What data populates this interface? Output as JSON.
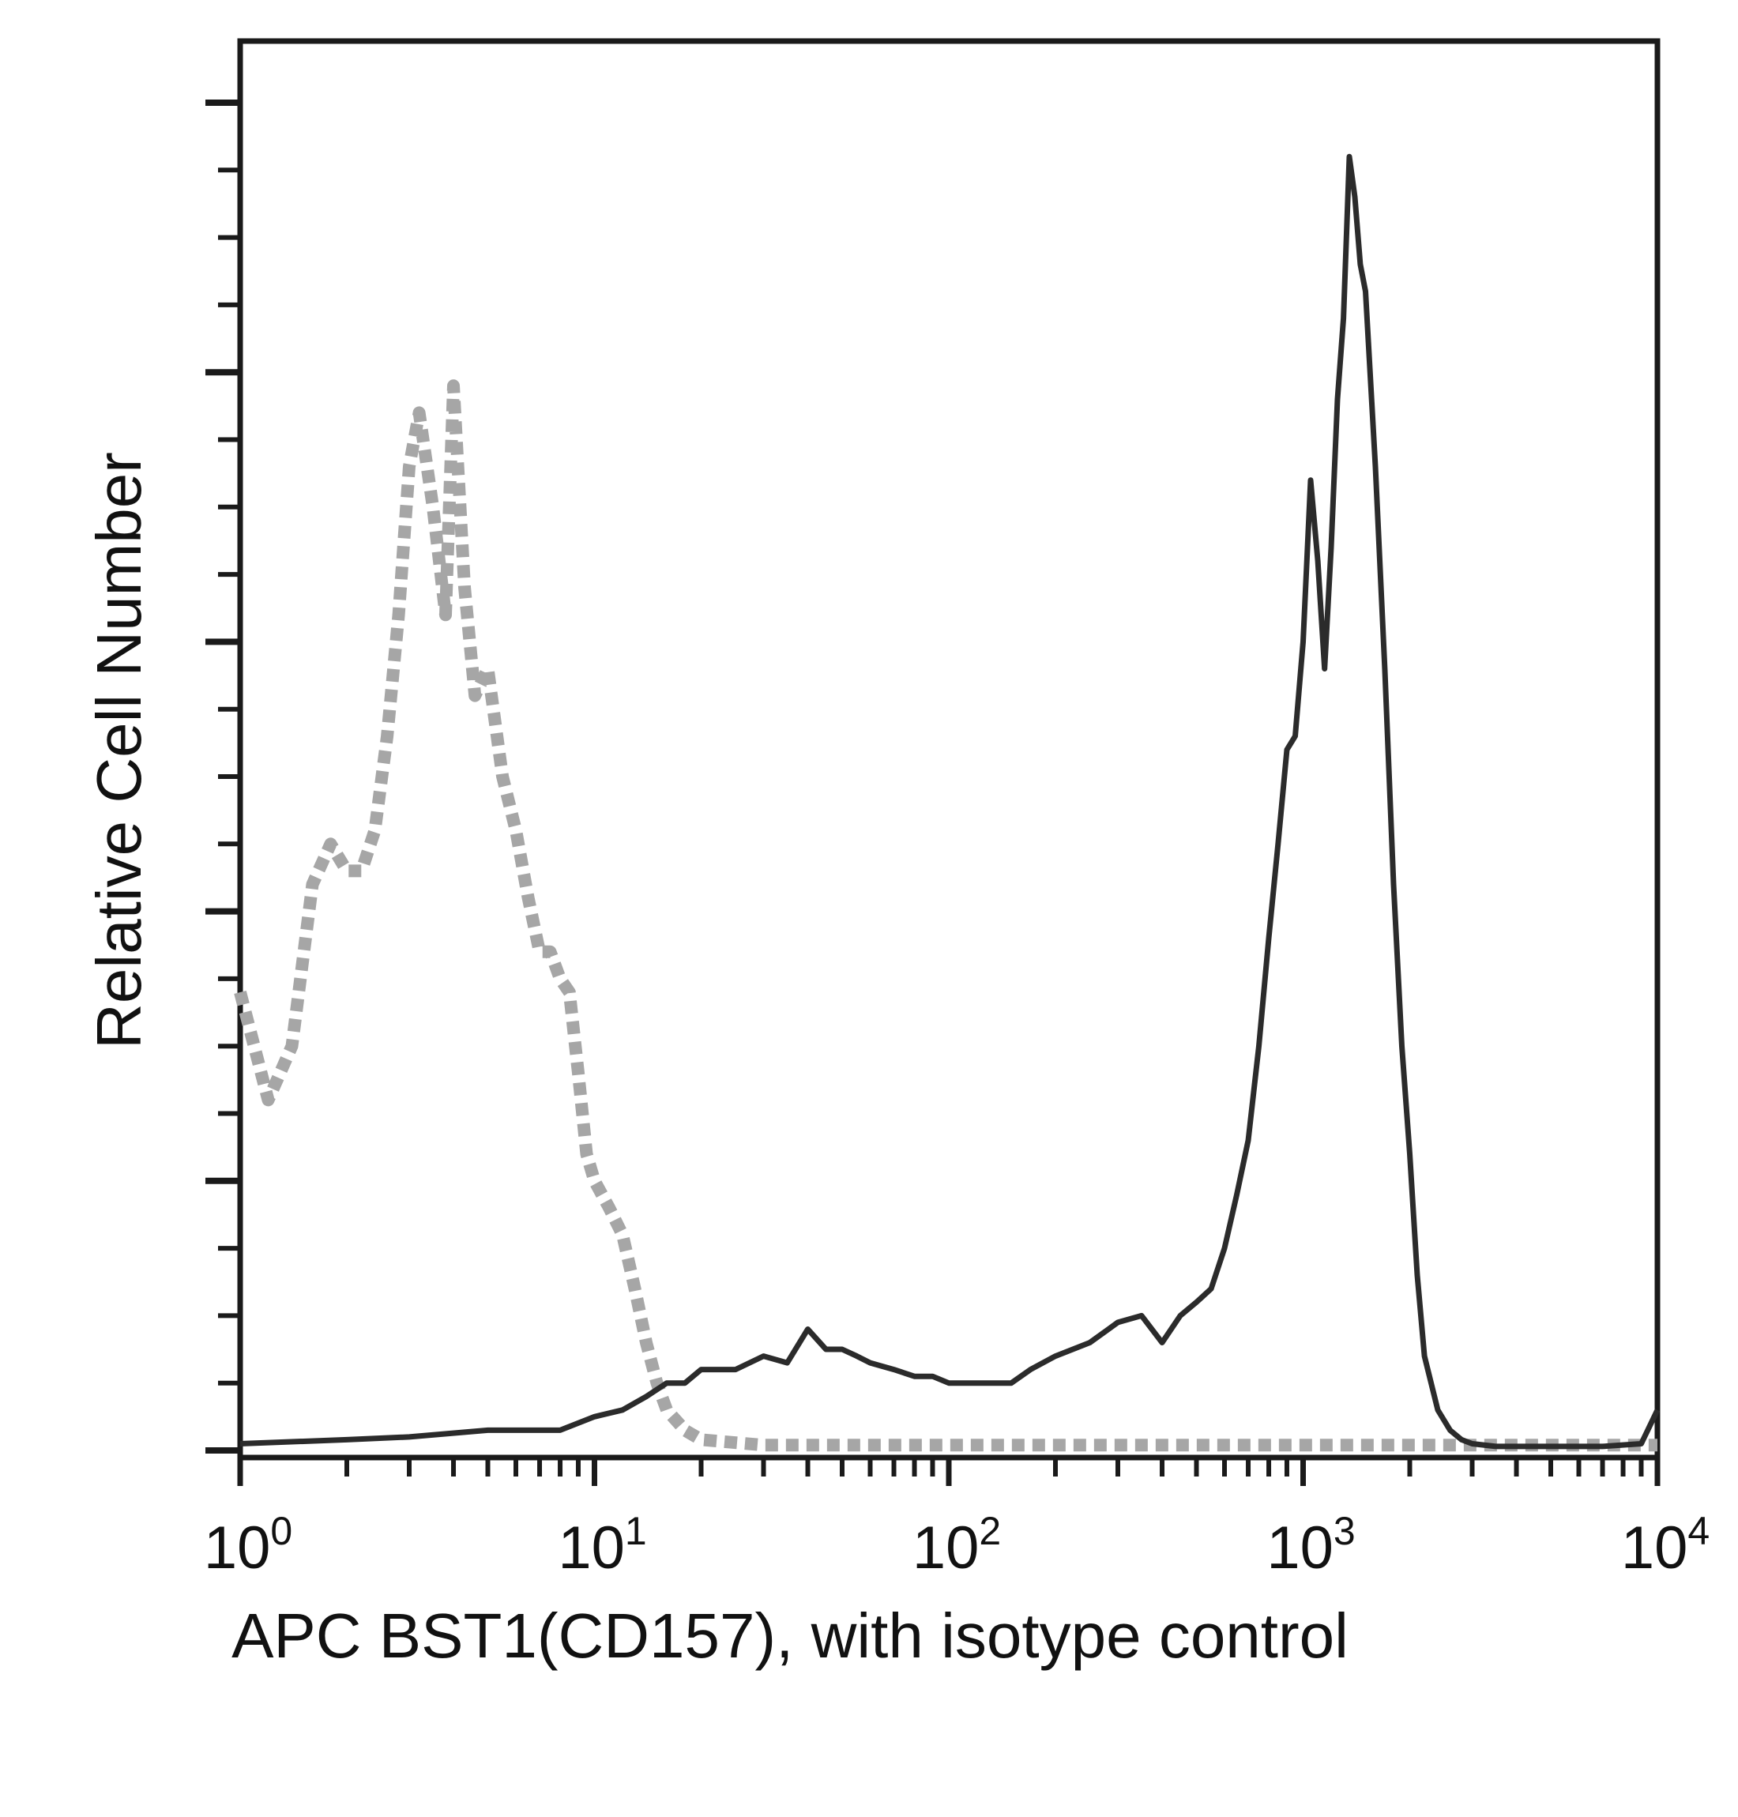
{
  "chart_data": {
    "type": "line",
    "title": "",
    "xlabel": "APC BST1(CD157), with isotype control",
    "ylabel": "Relative Cell Number",
    "x_scale": "log",
    "xlim": [
      1,
      10000
    ],
    "ylim": [
      0,
      100
    ],
    "x_ticks": [
      {
        "base": "10",
        "exp": "0"
      },
      {
        "base": "10",
        "exp": "1"
      },
      {
        "base": "10",
        "exp": "2"
      },
      {
        "base": "10",
        "exp": "3"
      },
      {
        "base": "10",
        "exp": "4"
      }
    ],
    "y_tick_labels": "none",
    "grid": false,
    "legend": "none",
    "series": [
      {
        "color": "#a6a6a6",
        "style": "dashed",
        "x": [
          1.0,
          1.2,
          1.4,
          1.6,
          1.8,
          2.0,
          2.2,
          2.4,
          2.6,
          2.8,
          3.0,
          3.2,
          3.5,
          3.8,
          4.0,
          4.3,
          4.6,
          5.0,
          5.5,
          6.0,
          6.5,
          7.0,
          7.5,
          8.0,
          8.5,
          9.0,
          9.5,
          10.0,
          11.0,
          12.0,
          13.0,
          14.0,
          15.0,
          16.0,
          18.0,
          20.0,
          30.0,
          50.0,
          100.0,
          200.0,
          500.0,
          1000.0,
          2000.0,
          5000.0,
          10000.0
        ],
        "y": [
          34,
          26,
          30,
          42,
          45,
          43,
          43,
          46,
          53,
          62,
          73,
          77,
          70,
          62,
          79,
          64,
          56,
          58,
          50,
          46,
          41,
          37,
          37,
          35,
          34,
          28,
          22,
          20,
          18,
          16,
          12,
          8,
          5,
          3,
          1.5,
          0.8,
          0.4,
          0.4,
          0.4,
          0.4,
          0.4,
          0.4,
          0.4,
          0.4,
          0.4
        ]
      },
      {
        "color": "#2b2b2b",
        "style": "solid",
        "x": [
          1.0,
          2.0,
          3.0,
          5.0,
          7.0,
          8.0,
          10.0,
          12.0,
          14.0,
          16.0,
          18.0,
          20.0,
          25.0,
          30.0,
          35.0,
          40.0,
          45.0,
          50.0,
          55.0,
          60.0,
          70.0,
          80.0,
          90.0,
          100.0,
          120.0,
          150.0,
          170.0,
          200.0,
          250.0,
          300.0,
          350.0,
          400.0,
          450.0,
          500.0,
          550.0,
          600.0,
          650.0,
          700.0,
          750.0,
          800.0,
          850.0,
          900.0,
          950.0,
          1000.0,
          1050.0,
          1100.0,
          1150.0,
          1200.0,
          1250.0,
          1300.0,
          1350.0,
          1400.0,
          1450.0,
          1500.0,
          1600.0,
          1700.0,
          1800.0,
          1900.0,
          2000.0,
          2100.0,
          2200.0,
          2400.0,
          2600.0,
          2800.0,
          3000.0,
          3500.0,
          4000.0,
          5000.0,
          7000.0,
          9000.0,
          10000.0
        ],
        "y": [
          0.5,
          0.8,
          1,
          1.5,
          1.5,
          1.5,
          2.5,
          3,
          4,
          5,
          5,
          6,
          6,
          7,
          6.5,
          9,
          7.5,
          7.5,
          7,
          6.5,
          6,
          5.5,
          5.5,
          5,
          5,
          5,
          6,
          7,
          8,
          9.5,
          10,
          8,
          10,
          11,
          12,
          15,
          19,
          23,
          30,
          38,
          45,
          52,
          53,
          60,
          72,
          66,
          58,
          67,
          78,
          84,
          96,
          93,
          88,
          86,
          73,
          58,
          42,
          30,
          22,
          13,
          7,
          3,
          1.5,
          0.8,
          0.5,
          0.3,
          0.3,
          0.3,
          0.3,
          0.5,
          3
        ]
      }
    ]
  }
}
